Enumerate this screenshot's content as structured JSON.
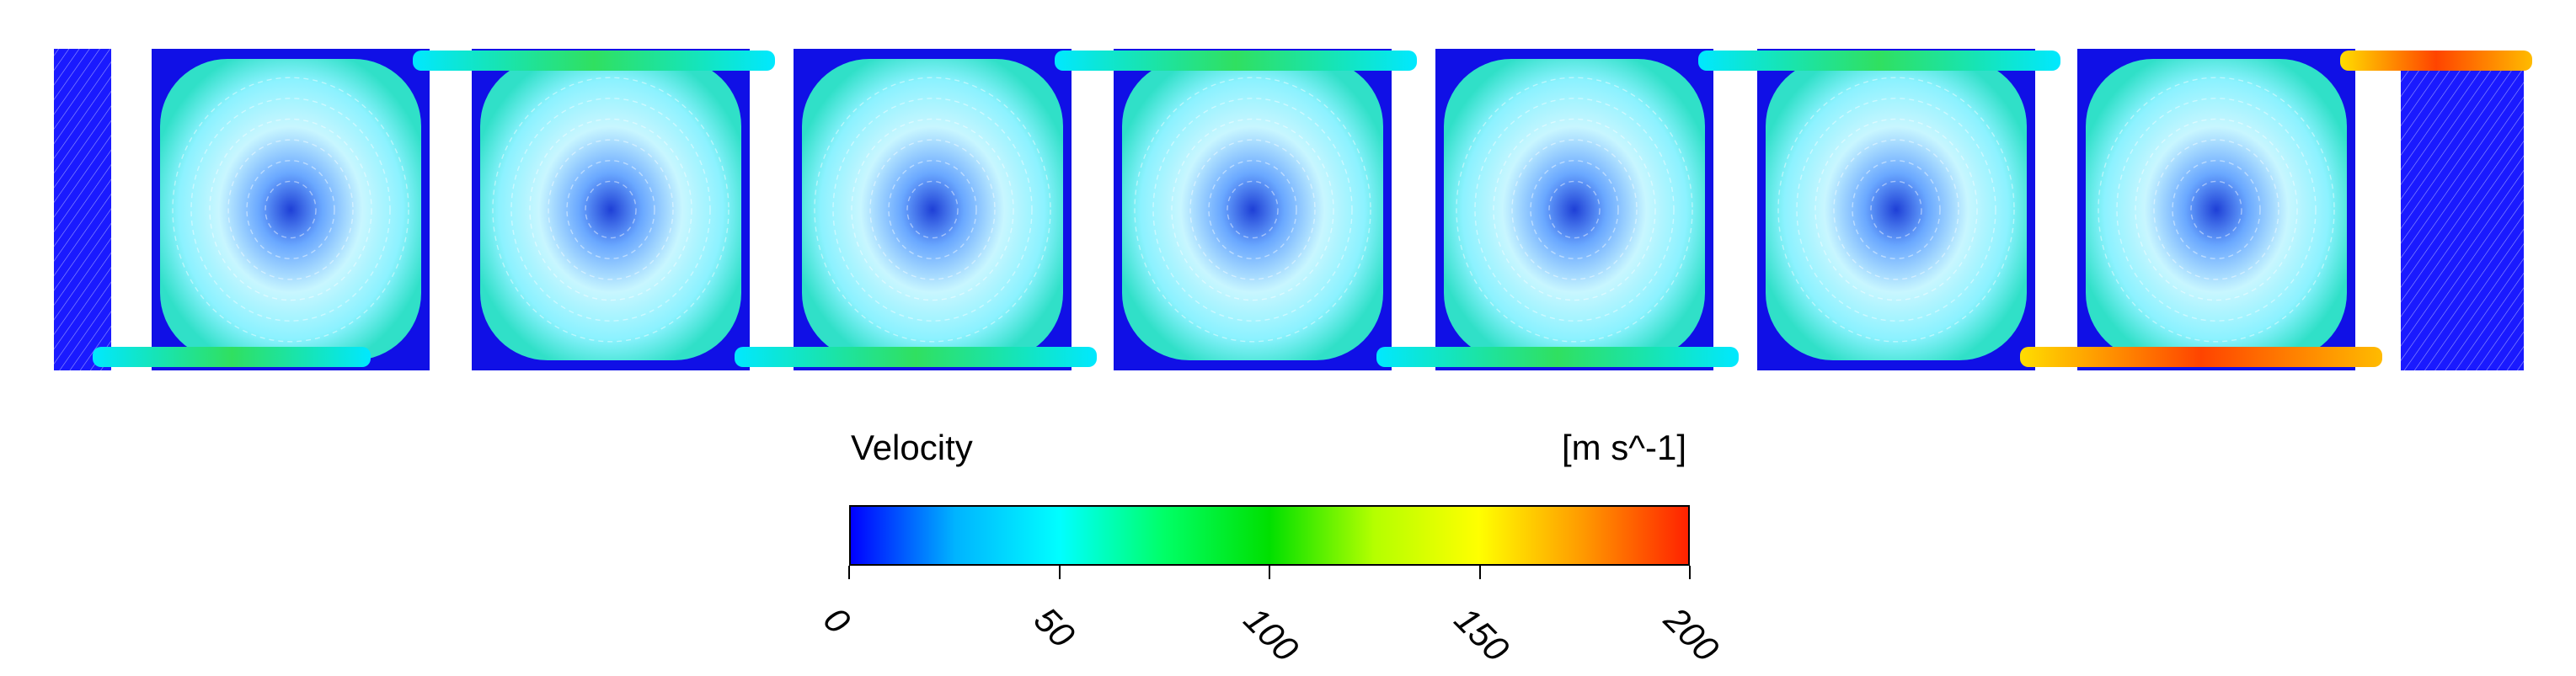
{
  "legend": {
    "title": "Velocity",
    "units": "[m s^-1]",
    "ticks": [
      "0",
      "50",
      "100",
      "150",
      "200"
    ],
    "range": [
      0,
      200
    ],
    "colormap": [
      "#0000ff",
      "#00b4ff",
      "#00ffff",
      "#00ff66",
      "#00e000",
      "#b4ff00",
      "#ffff00",
      "#ff9900",
      "#ff2200"
    ]
  },
  "colors": {
    "wall": "#1010e6",
    "vortex_field": "#8fe6ff",
    "vortex_core": "#2a4fd8",
    "channel_mid": "#22dd55",
    "channel_high": "#ffcc00",
    "channel_peak": "#ff4400"
  }
}
